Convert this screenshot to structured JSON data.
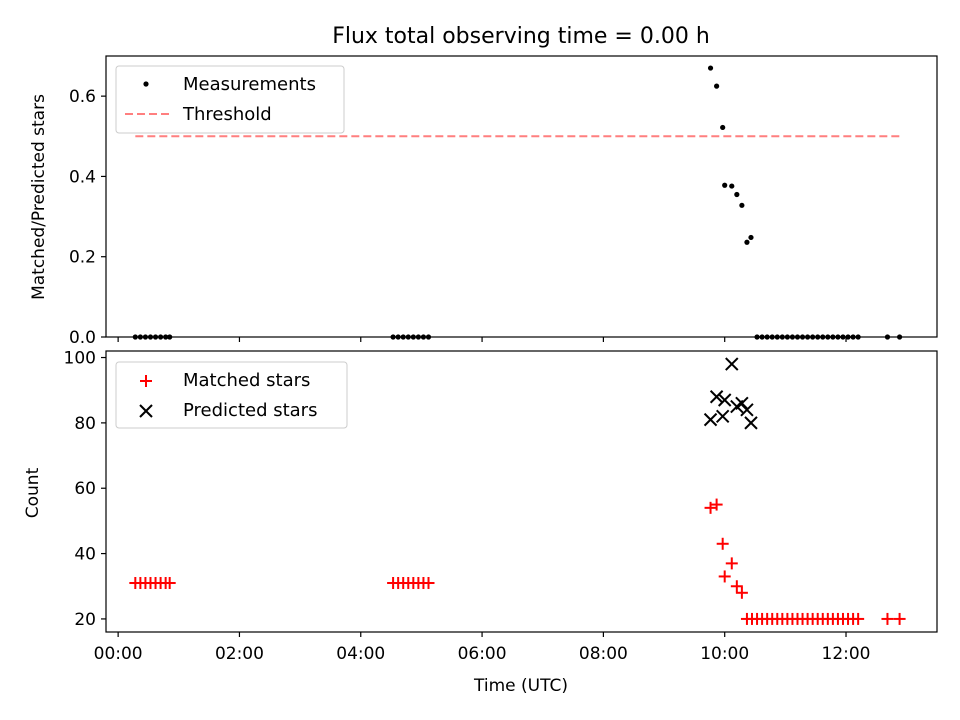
{
  "figure": {
    "title": "Flux total observing time = 0.00 h"
  },
  "chart_data": [
    {
      "type": "scatter",
      "ylabel": "Matched/Predicted stars",
      "ylim": [
        0,
        0.7
      ],
      "yticks": [
        0.0,
        0.2,
        0.4,
        0.6
      ],
      "ytick_labels": [
        "0.0",
        "0.2",
        "0.4",
        "0.6"
      ],
      "xlim_hours": [
        -0.2,
        13.5
      ],
      "legend_position": "top-left",
      "series": [
        {
          "name": "Measurements",
          "kind": "points",
          "color": "#000000",
          "x": [
            "00:17",
            "00:22",
            "00:27",
            "00:32",
            "00:37",
            "00:42",
            "00:47",
            "00:51",
            "04:32",
            "04:37",
            "04:42",
            "04:47",
            "04:52",
            "04:57",
            "05:02",
            "05:07",
            "09:46",
            "09:52",
            "09:58",
            "10:00",
            "10:07",
            "10:12",
            "10:17",
            "10:22",
            "10:26",
            "10:32",
            "10:37",
            "10:42",
            "10:47",
            "10:52",
            "10:57",
            "11:02",
            "11:07",
            "11:12",
            "11:17",
            "11:22",
            "11:27",
            "11:32",
            "11:37",
            "11:42",
            "11:47",
            "11:52",
            "11:57",
            "12:02",
            "12:07",
            "12:12",
            "12:41",
            "12:53"
          ],
          "y": [
            0,
            0,
            0,
            0,
            0,
            0,
            0,
            0,
            0,
            0,
            0,
            0,
            0,
            0,
            0,
            0,
            0.67,
            0.625,
            0.522,
            0.378,
            0.376,
            0.355,
            0.328,
            0.236,
            0.248,
            0,
            0,
            0,
            0,
            0,
            0,
            0,
            0,
            0,
            0,
            0,
            0,
            0,
            0,
            0,
            0,
            0,
            0,
            0,
            0,
            0,
            0,
            0
          ]
        },
        {
          "name": "Threshold",
          "kind": "dashed-line",
          "color": "#ff7f7f",
          "x": [
            "00:17",
            "12:53"
          ],
          "y": [
            0.5,
            0.5
          ]
        }
      ]
    },
    {
      "type": "scatter",
      "xlabel": "Time (UTC)",
      "ylabel": "Count",
      "ylim": [
        16,
        102
      ],
      "yticks": [
        20,
        40,
        60,
        80,
        100
      ],
      "ytick_labels": [
        "20",
        "40",
        "60",
        "80",
        "100"
      ],
      "xlim_hours": [
        -0.2,
        13.5
      ],
      "xticks": [
        "00:00",
        "02:00",
        "04:00",
        "06:00",
        "08:00",
        "10:00",
        "12:00"
      ],
      "legend_position": "top-left",
      "series": [
        {
          "name": "Matched stars",
          "marker": "plus",
          "color": "#ff0000",
          "x": [
            "00:17",
            "00:22",
            "00:27",
            "00:32",
            "00:37",
            "00:42",
            "00:47",
            "00:51",
            "04:32",
            "04:37",
            "04:42",
            "04:47",
            "04:52",
            "04:57",
            "05:02",
            "05:07",
            "09:46",
            "09:52",
            "09:58",
            "10:00",
            "10:07",
            "10:12",
            "10:17",
            "10:22",
            "10:27",
            "10:32",
            "10:37",
            "10:42",
            "10:47",
            "10:52",
            "10:57",
            "11:02",
            "11:07",
            "11:12",
            "11:17",
            "11:22",
            "11:27",
            "11:32",
            "11:37",
            "11:42",
            "11:47",
            "11:52",
            "11:57",
            "12:02",
            "12:07",
            "12:12",
            "12:41",
            "12:53"
          ],
          "y": [
            31,
            31,
            31,
            31,
            31,
            31,
            31,
            31,
            31,
            31,
            31,
            31,
            31,
            31,
            31,
            31,
            54,
            55,
            43,
            33,
            37,
            30,
            28,
            20,
            20,
            20,
            20,
            20,
            20,
            20,
            20,
            20,
            20,
            20,
            20,
            20,
            20,
            20,
            20,
            20,
            20,
            20,
            20,
            20,
            20,
            20,
            20,
            20
          ]
        },
        {
          "name": "Predicted stars",
          "marker": "x",
          "color": "#000000",
          "x": [
            "09:46",
            "09:52",
            "09:58",
            "10:00",
            "10:07",
            "10:12",
            "10:17",
            "10:22",
            "10:26"
          ],
          "y": [
            81,
            88,
            82,
            87,
            98,
            85,
            86,
            84,
            80
          ]
        }
      ]
    }
  ]
}
